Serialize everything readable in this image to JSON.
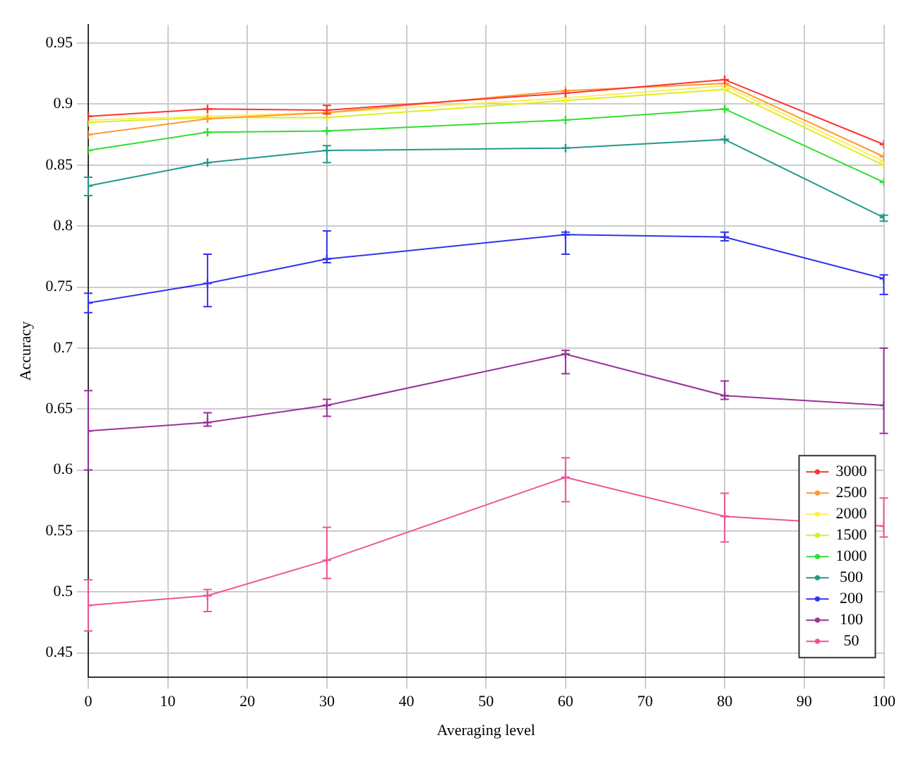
{
  "chart_data": {
    "type": "line",
    "xlabel": "Averaging level",
    "ylabel": "Accuracy",
    "x": [
      0,
      15,
      30,
      60,
      80,
      100
    ],
    "xlim": [
      0,
      100
    ],
    "xticks": [
      0,
      10,
      20,
      30,
      40,
      50,
      60,
      70,
      80,
      90,
      100
    ],
    "ylim": [
      0.43,
      0.965
    ],
    "yticks": [
      0.45,
      0.5,
      0.55,
      0.6,
      0.65,
      0.7,
      0.75,
      0.8,
      0.85,
      0.9,
      0.95
    ],
    "grid": true,
    "legend": "bottom right",
    "marker": "cross",
    "line_style": "solid",
    "series": [
      {
        "name": "3000",
        "color": "#ff3333",
        "values": [
          0.89,
          0.896,
          0.895,
          0.909,
          0.92,
          0.867
        ],
        "errors": [
          null,
          null,
          [
            0.892,
            0.899
          ],
          null,
          null,
          null
        ]
      },
      {
        "name": "2500",
        "color": "#ff9933",
        "values": [
          0.875,
          0.888,
          0.893,
          0.911,
          0.917,
          0.857
        ]
      },
      {
        "name": "2000",
        "color": "#ffee55",
        "values": [
          0.887,
          0.89,
          0.893,
          0.905,
          0.915,
          0.853
        ]
      },
      {
        "name": "1500",
        "color": "#ddee22",
        "values": [
          0.885,
          0.889,
          0.889,
          0.903,
          0.912,
          0.85
        ]
      },
      {
        "name": "1000",
        "color": "#33dd33",
        "values": [
          0.862,
          0.877,
          0.878,
          0.887,
          0.896,
          0.836
        ]
      },
      {
        "name": "500",
        "color": "#229988",
        "values": [
          0.833,
          0.852,
          0.862,
          0.864,
          0.871,
          0.807
        ],
        "errors": [
          [
            0.825,
            0.84
          ],
          null,
          [
            0.852,
            0.866
          ],
          null,
          null,
          [
            0.804,
            0.809
          ]
        ]
      },
      {
        "name": "200",
        "color": "#3333ee",
        "values": [
          0.737,
          0.753,
          0.773,
          0.793,
          0.791,
          0.757
        ],
        "errors": [
          [
            0.729,
            0.745
          ],
          [
            0.734,
            0.777
          ],
          [
            0.77,
            0.796
          ],
          [
            0.777,
            0.795
          ],
          [
            0.788,
            0.795
          ],
          [
            0.744,
            0.76
          ]
        ]
      },
      {
        "name": "100",
        "color": "#993399",
        "values": [
          0.632,
          0.639,
          0.653,
          0.695,
          0.661,
          0.653
        ],
        "errors": [
          [
            0.6,
            0.665
          ],
          [
            0.636,
            0.647
          ],
          [
            0.644,
            0.658
          ],
          [
            0.679,
            0.698
          ],
          [
            0.658,
            0.673
          ],
          [
            0.63,
            0.7
          ]
        ]
      },
      {
        "name": "50",
        "color": "#ee5599",
        "values": [
          0.489,
          0.497,
          0.526,
          0.594,
          0.562,
          0.554
        ],
        "errors": [
          [
            0.468,
            0.51
          ],
          [
            0.484,
            0.502
          ],
          [
            0.511,
            0.553
          ],
          [
            0.574,
            0.61
          ],
          [
            0.541,
            0.581
          ],
          [
            0.545,
            0.577
          ]
        ]
      }
    ]
  }
}
